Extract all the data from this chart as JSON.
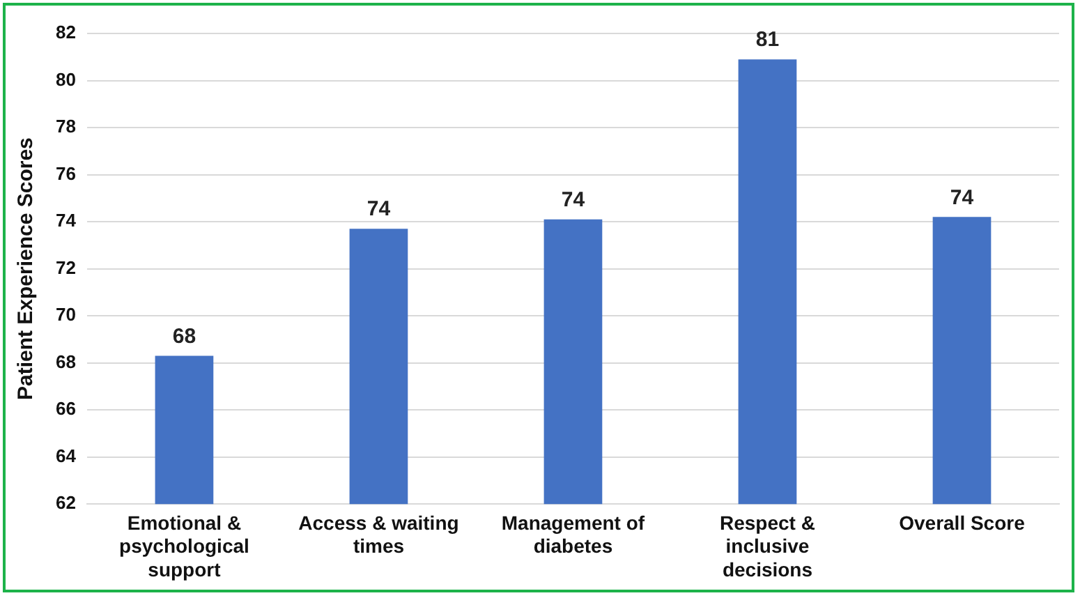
{
  "chart_data": {
    "type": "bar",
    "ylabel": "Patient Experience Scores",
    "categories": [
      "Emotional & psychological support",
      "Access & waiting times",
      "Management of diabetes",
      "Respect & inclusive decisions",
      "Overall Score"
    ],
    "values": [
      68.3,
      73.7,
      74.1,
      80.9,
      74.2
    ],
    "value_labels": [
      "68",
      "74",
      "74",
      "81",
      "74"
    ],
    "color": "#4472c4",
    "ylim": [
      62,
      82
    ],
    "yticks": [
      62,
      64,
      66,
      68,
      70,
      72,
      74,
      76,
      78,
      80,
      82
    ],
    "grid": "y"
  }
}
